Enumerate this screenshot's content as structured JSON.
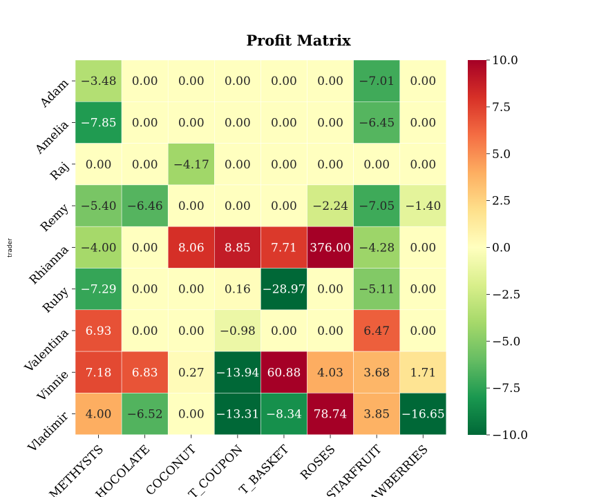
{
  "chart_data": {
    "type": "heatmap",
    "title": "Profit Matrix",
    "ylabel": "trader",
    "xlabel": "",
    "rows": [
      "Adam",
      "Amelia",
      "Raj",
      "Remy",
      "Rhianna",
      "Ruby",
      "Valentina",
      "Vinnie",
      "Vladimir"
    ],
    "columns": [
      "AMETHYSTS",
      "CHOCOLATE",
      "COCONUT",
      "COCONUT_COUPON",
      "GIFT_BASKET",
      "ROSES",
      "STARFRUIT",
      "STRAWBERRIES"
    ],
    "columns_shown": [
      "METHYSTS",
      "HOCOLATE",
      "COCONUT",
      "T_COUPON",
      "T_BASKET",
      "ROSES",
      "STARFRUIT",
      "AWBERRIES"
    ],
    "values": [
      [
        -3.48,
        0.0,
        0.0,
        0.0,
        0.0,
        0.0,
        -7.01,
        0.0
      ],
      [
        -7.85,
        0.0,
        0.0,
        0.0,
        0.0,
        0.0,
        -6.45,
        0.0
      ],
      [
        0.0,
        0.0,
        -4.17,
        0.0,
        0.0,
        0.0,
        0.0,
        0.0
      ],
      [
        -5.4,
        -6.46,
        0.0,
        0.0,
        0.0,
        -2.24,
        -7.05,
        -1.4
      ],
      [
        -4.0,
        0.0,
        8.06,
        8.85,
        7.71,
        376.0,
        -4.28,
        0.0
      ],
      [
        -7.29,
        0.0,
        0.0,
        0.16,
        -28.97,
        0.0,
        -5.11,
        0.0
      ],
      [
        6.93,
        0.0,
        0.0,
        -0.98,
        0.0,
        0.0,
        6.47,
        0.0
      ],
      [
        7.18,
        6.83,
        0.27,
        -13.94,
        60.88,
        4.03,
        3.68,
        1.71
      ],
      [
        4.0,
        -6.52,
        0.0,
        -13.31,
        -8.34,
        78.74,
        3.85,
        -16.65
      ]
    ],
    "value_format": "2 decimals",
    "colormap": "RdYlGn_r",
    "vmin": -10.0,
    "vmax": 10.0,
    "colorbar_ticks": [
      -10.0,
      -7.5,
      -5.0,
      -2.5,
      0.0,
      2.5,
      5.0,
      7.5,
      10.0
    ],
    "colorbar_tick_labels": [
      "−10.0",
      "−7.5",
      "−5.0",
      "−2.5",
      "0.0",
      "2.5",
      "5.0",
      "7.5",
      "10.0"
    ],
    "cell_border_color": "#ffffff",
    "grid": false,
    "legend": "colorbar-right"
  }
}
